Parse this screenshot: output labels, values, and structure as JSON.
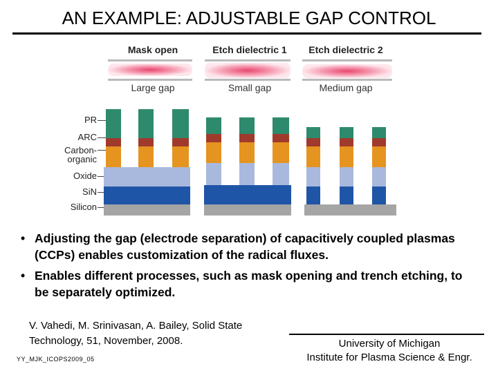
{
  "title": "AN EXAMPLE: ADJUSTABLE GAP CONTROL",
  "figure": {
    "columns": [
      {
        "header": "Mask open",
        "gap_label": "Large gap"
      },
      {
        "header": "Etch dielectric 1",
        "gap_label": "Small gap"
      },
      {
        "header": "Etch dielectric 2",
        "gap_label": "Medium gap"
      }
    ],
    "layer_labels": {
      "pr": "PR",
      "arc": "ARC",
      "carbon_organic": "Carbon-\norganic",
      "oxide": "Oxide",
      "sin": "SiN",
      "silicon": "Silicon"
    },
    "colors": {
      "pr": "#2e8a6c",
      "arc": "#a03a2c",
      "carbon": "#e59420",
      "oxide": "#a9b9dd",
      "sin": "#1f55a6",
      "silicon": "#a5a5a5",
      "plasma": "#e8466e"
    }
  },
  "bullets": [
    "Adjusting the gap (electrode separation) of capacitively coupled plasmas (CCPs) enables customization of the radical fluxes.",
    "Enables different processes, such as mask opening and trench etching, to be separately optimized."
  ],
  "bullet_symbol": "•",
  "citation": "V. Vahedi, M. Srinivasan, A. Bailey, Solid State Technology, 51, November, 2008.",
  "file_tag": "YY_MJK_ICOPS2009_05",
  "affiliation": {
    "line1": "University of Michigan",
    "line2": "Institute for Plasma Science & Engr."
  }
}
